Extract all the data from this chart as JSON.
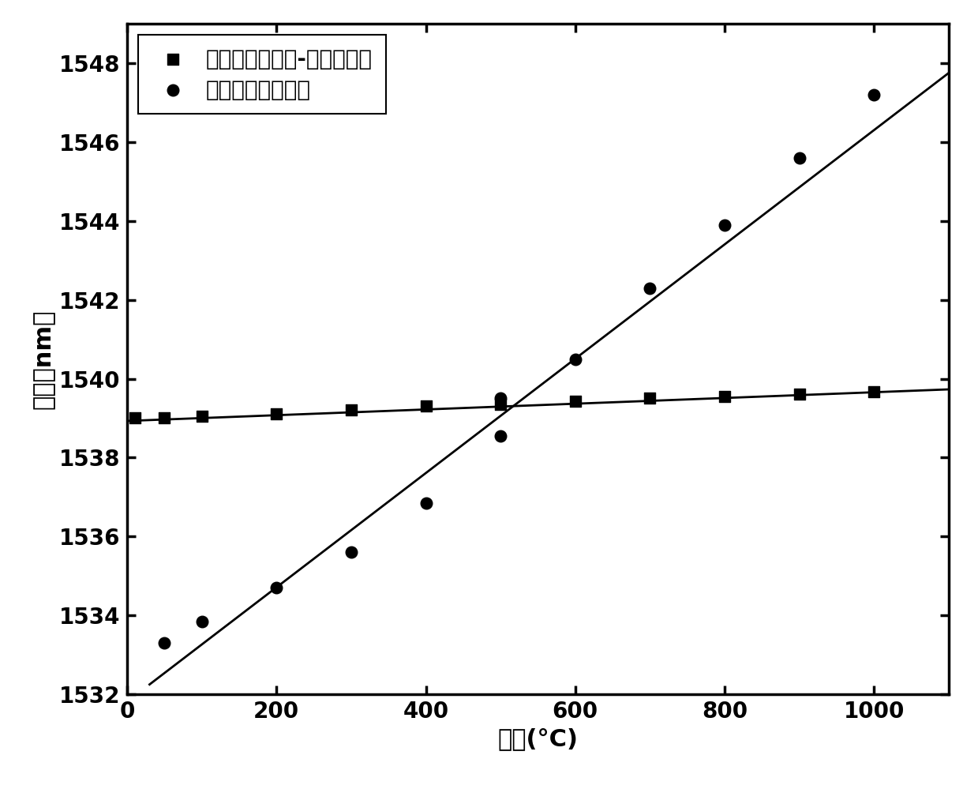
{
  "title": "",
  "xlabel": "温度(°C)",
  "ylabel": "波长（nm）",
  "xlim": [
    0,
    1100
  ],
  "ylim": [
    1532,
    1549
  ],
  "xticks": [
    0,
    200,
    400,
    600,
    800,
    1000
  ],
  "yticks": [
    1532,
    1534,
    1536,
    1538,
    1540,
    1542,
    1544,
    1546,
    1548
  ],
  "fabry_perot_x": [
    10,
    50,
    100,
    200,
    300,
    400,
    500,
    600,
    700,
    800,
    900,
    1000
  ],
  "fabry_perot_y": [
    1539.0,
    1539.0,
    1539.05,
    1539.1,
    1539.2,
    1539.3,
    1539.35,
    1539.42,
    1539.5,
    1539.55,
    1539.62,
    1539.68
  ],
  "fabry_perot_fit_x": [
    0,
    1100
  ],
  "fabry_perot_fit_y": [
    1538.93,
    1539.73
  ],
  "grating_x": [
    50,
    100,
    200,
    300,
    400,
    500,
    500,
    600,
    700,
    800,
    900,
    1000
  ],
  "grating_y": [
    1533.3,
    1533.85,
    1534.7,
    1535.6,
    1536.85,
    1538.55,
    1539.5,
    1540.5,
    1542.3,
    1543.9,
    1545.6,
    1547.2
  ],
  "grating_fit_x": [
    30,
    1100
  ],
  "grating_fit_y": [
    1532.25,
    1547.75
  ],
  "legend1": "传感器中法布里-珀罗腔部分",
  "legend2": "传感器中光栅部分",
  "color": "#000000",
  "bg_color": "#ffffff",
  "fontsize_label": 22,
  "fontsize_tick": 20,
  "fontsize_legend": 20,
  "linewidth": 2.0,
  "marker_size_square": 90,
  "marker_size_circle": 110
}
